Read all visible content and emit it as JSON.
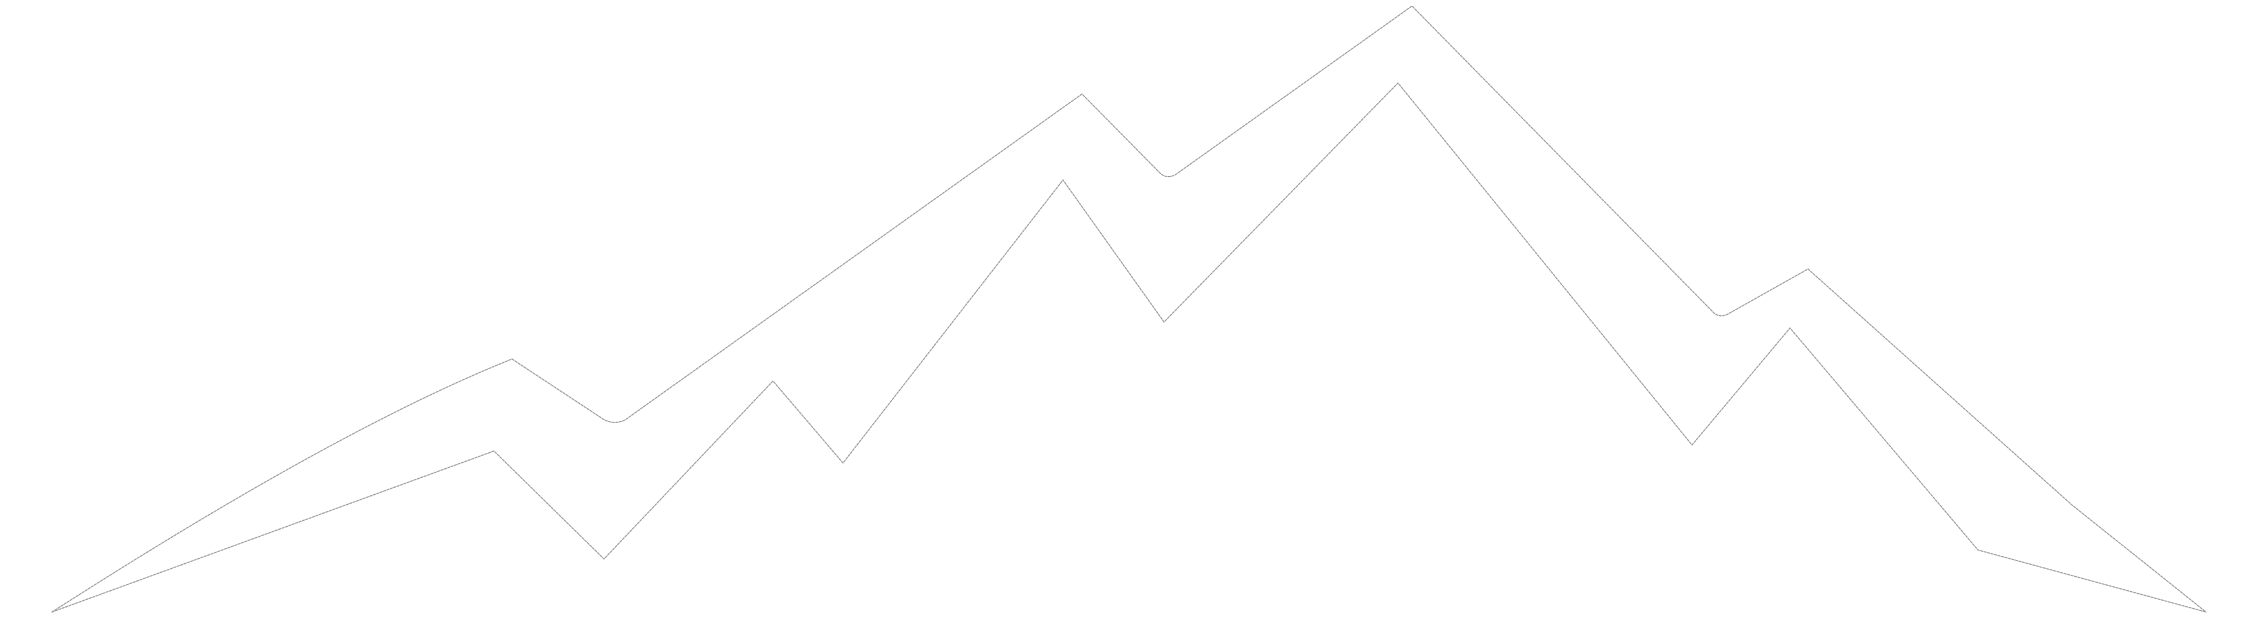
{
  "artwork": {
    "subject": "mountain-range-outline",
    "stroke_color": "#9a9a9a",
    "background_color": "#ffffff",
    "line_style": "thin dotted/hairline",
    "elements": [
      {
        "name": "upper-ridge-line"
      },
      {
        "name": "lower-ridge-line"
      }
    ]
  }
}
